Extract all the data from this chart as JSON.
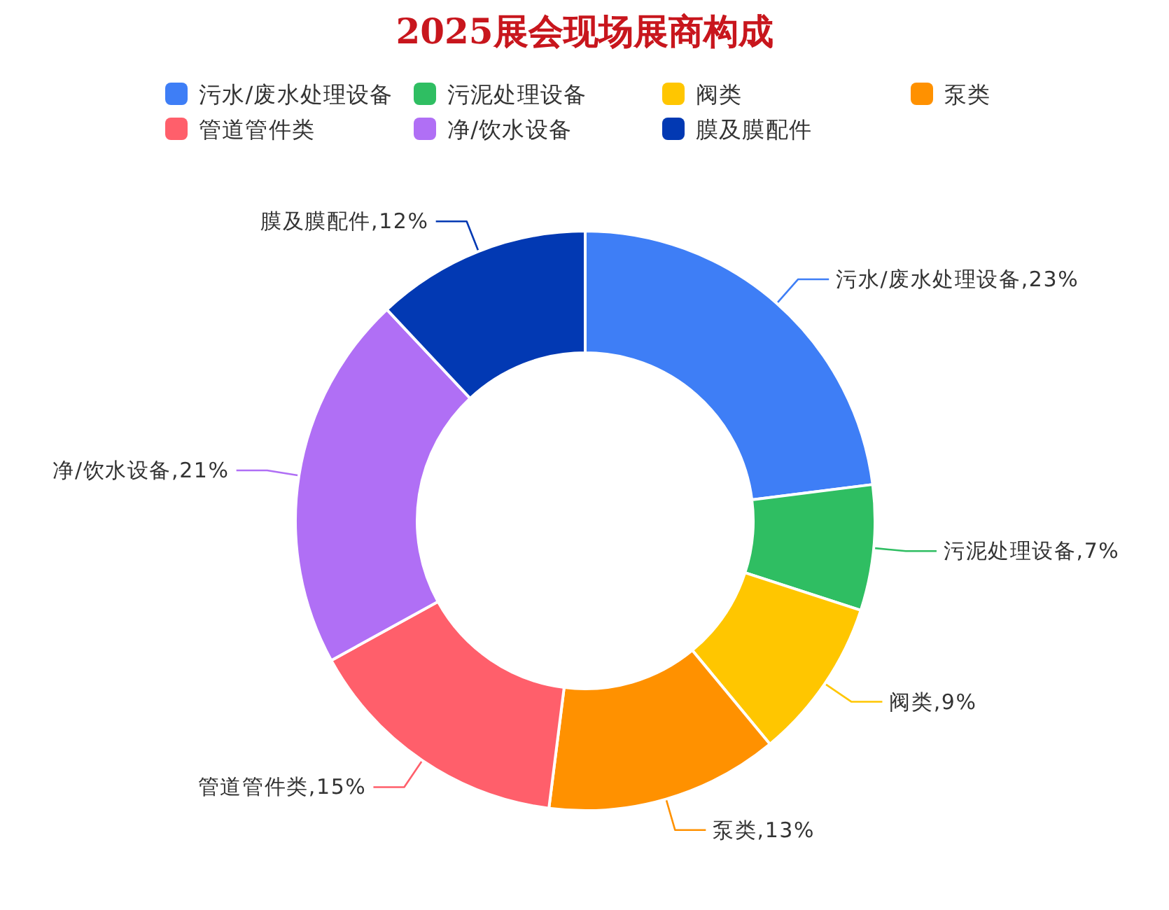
{
  "chart_data": {
    "type": "donut",
    "title": "2025展会现场展商构成",
    "categories": [
      "污水/废水处理设备",
      "污泥处理设备",
      "阀类",
      "泵类",
      "管道管件类",
      "净/饮水设备",
      "膜及膜配件"
    ],
    "values": [
      23,
      7,
      9,
      13,
      15,
      21,
      12
    ],
    "value_labels": [
      "污水/废水处理设备,23%",
      "污泥处理设备,7%",
      "阀类,9%",
      "泵类,13%",
      "管道管件类,15%",
      "净/饮水设备,21%",
      "膜及膜配件,12%"
    ],
    "colors": [
      "#3e7ef6",
      "#2fbe62",
      "#ffc600",
      "#ff9100",
      "#ff5f6b",
      "#b06ff5",
      "#0239b3"
    ],
    "legend": "top"
  }
}
